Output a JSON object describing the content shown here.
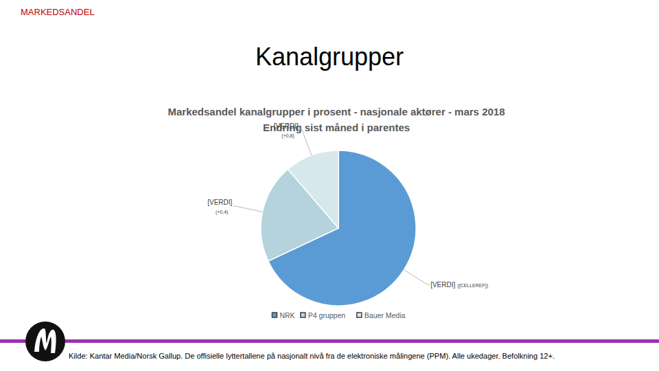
{
  "header": {
    "section": "MARKEDSANDEL",
    "title": "Kanalgrupper"
  },
  "chart_data": {
    "type": "pie",
    "title": "Markedsandel kanalgrupper i prosent - nasjonale aktører - mars 2018",
    "subtitle": "Endring sist måned i parentes",
    "categories": [
      "NRK",
      "P4 gruppen",
      "Bauer Media"
    ],
    "values": [
      68,
      20.7,
      11.3
    ],
    "colors": [
      "#5b9bd5",
      "#b4d3dc",
      "#d6e8ec"
    ],
    "value_labels": [
      "[VERDI]",
      "[VERDI]",
      "[VERDI]"
    ],
    "change_labels": [
      "([CELLEREF])",
      "(+0,4)",
      "(+0,8)"
    ],
    "data_labels": true,
    "legend": "bottom"
  },
  "footer": {
    "source": "Kilde: Kantar Media/Norsk Gallup. De offisielle lyttertallene på nasjonalt nivå fra de elektroniske målingene (PPM). Alle ukedager. Befolkning 12+."
  }
}
